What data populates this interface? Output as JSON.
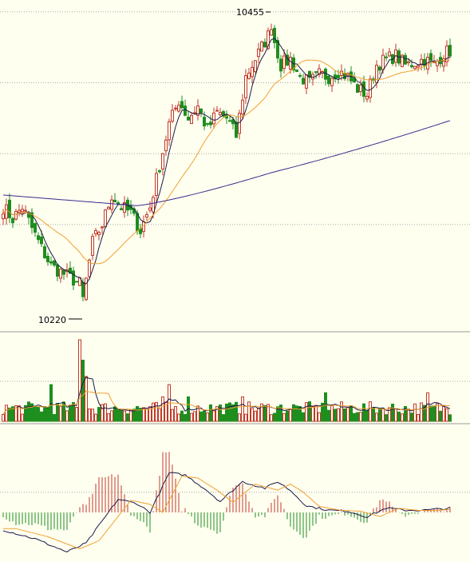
{
  "colors": {
    "background": "#FFFFF0",
    "grid": "#A8A8A8",
    "separator": "#999999",
    "up": "#C0392B",
    "down": "#1E8E1E",
    "ma_short": "#1A1A4A",
    "ma_mid": "#F0A030",
    "ma_long": "#3B2A8C",
    "macd_dif": "#1A1A4A",
    "macd_dea": "#F0A030"
  },
  "chart_data": [
    {
      "type": "candlestick",
      "panel": "price",
      "ylim": [
        10195,
        10475
      ],
      "gridlines": [
        10285,
        10345,
        10405,
        10465
      ],
      "high_annotation": {
        "label": "10455",
        "index": 84,
        "value": 10455
      },
      "low_annotation": {
        "label": "10220",
        "index": 25,
        "value": 10220
      },
      "anchors": [
        [
          0,
          10300
        ],
        [
          3,
          10290
        ],
        [
          6,
          10300
        ],
        [
          9,
          10282
        ],
        [
          12,
          10265
        ],
        [
          15,
          10250
        ],
        [
          18,
          10245
        ],
        [
          21,
          10240
        ],
        [
          24,
          10235
        ],
        [
          25,
          10222
        ],
        [
          28,
          10270
        ],
        [
          31,
          10285
        ],
        [
          34,
          10310
        ],
        [
          37,
          10300
        ],
        [
          40,
          10295
        ],
        [
          43,
          10280
        ],
        [
          46,
          10300
        ],
        [
          49,
          10335
        ],
        [
          52,
          10370
        ],
        [
          55,
          10390
        ],
        [
          58,
          10375
        ],
        [
          61,
          10385
        ],
        [
          64,
          10365
        ],
        [
          67,
          10380
        ],
        [
          70,
          10375
        ],
        [
          73,
          10360
        ],
        [
          76,
          10410
        ],
        [
          79,
          10425
        ],
        [
          82,
          10440
        ],
        [
          84,
          10450
        ],
        [
          87,
          10420
        ],
        [
          90,
          10425
        ],
        [
          93,
          10410
        ],
        [
          96,
          10405
        ],
        [
          99,
          10412
        ],
        [
          102,
          10410
        ],
        [
          105,
          10415
        ],
        [
          108,
          10410
        ],
        [
          111,
          10400
        ],
        [
          114,
          10395
        ],
        [
          117,
          10420
        ],
        [
          120,
          10425
        ],
        [
          123,
          10428
        ],
        [
          126,
          10420
        ],
        [
          129,
          10422
        ],
        [
          132,
          10425
        ],
        [
          135,
          10420
        ],
        [
          138,
          10430
        ],
        [
          140,
          10432
        ]
      ],
      "ma_long_range": [
        10307,
        10373
      ],
      "ma_mid_end": 10415
    },
    {
      "type": "bar",
      "panel": "volume",
      "base_level": 0.2,
      "spikes": {
        "24": 1.0,
        "25": 0.75,
        "26": 0.55,
        "15": 0.45,
        "50": 0.3,
        "52": 0.45,
        "58": 0.3,
        "75": 0.3,
        "101": 0.35,
        "133": 0.35
      }
    },
    {
      "type": "bar",
      "panel": "macd",
      "ylim": [
        -1,
        1
      ],
      "gridlines": [
        0.46
      ],
      "dif_anchors": [
        [
          0,
          -0.4
        ],
        [
          10,
          -0.6
        ],
        [
          20,
          -0.9
        ],
        [
          26,
          -0.7
        ],
        [
          30,
          -0.3
        ],
        [
          36,
          0.3
        ],
        [
          42,
          0.2
        ],
        [
          46,
          0.0
        ],
        [
          52,
          0.9
        ],
        [
          57,
          0.85
        ],
        [
          63,
          0.55
        ],
        [
          68,
          0.25
        ],
        [
          75,
          0.7
        ],
        [
          82,
          0.55
        ],
        [
          86,
          0.7
        ],
        [
          90,
          0.5
        ],
        [
          95,
          0.15
        ],
        [
          102,
          0.05
        ],
        [
          108,
          0.03
        ],
        [
          114,
          -0.1
        ],
        [
          120,
          0.1
        ],
        [
          126,
          0.05
        ],
        [
          132,
          0.05
        ],
        [
          140,
          0.1
        ]
      ],
      "dea_lag": 4
    }
  ]
}
